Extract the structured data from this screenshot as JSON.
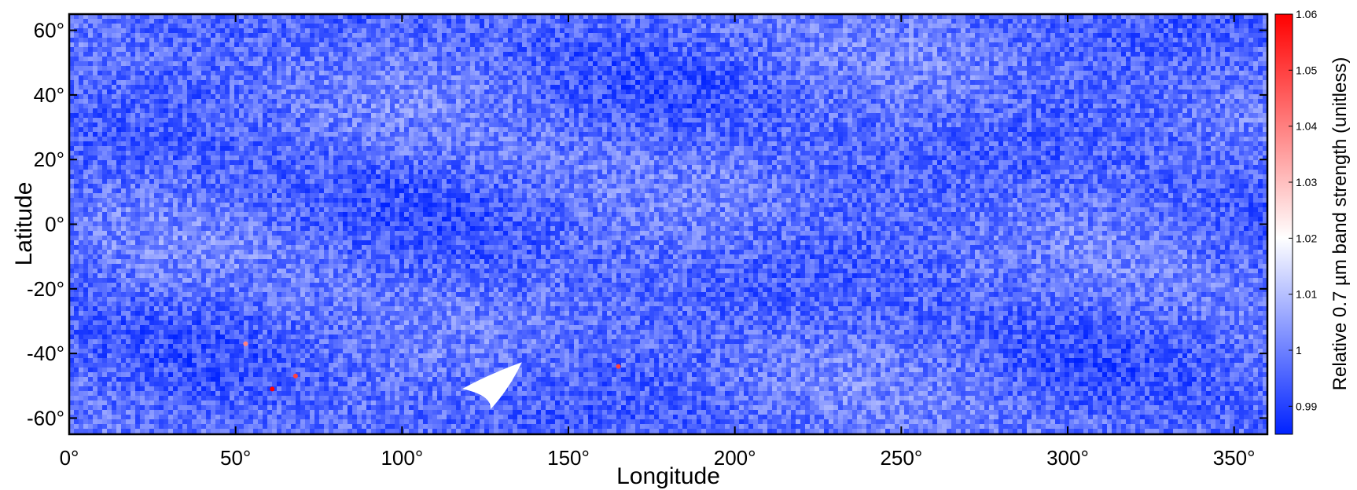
{
  "chart_data": {
    "type": "heatmap",
    "title": "",
    "xlabel": "Longitude",
    "ylabel": "Latitude",
    "xlim": [
      0,
      360
    ],
    "ylim": [
      -65,
      65
    ],
    "x_ticks": [
      0,
      50,
      100,
      150,
      200,
      250,
      300,
      350
    ],
    "x_tick_labels": [
      "0°",
      "50°",
      "100°",
      "150°",
      "200°",
      "250°",
      "300°",
      "350°"
    ],
    "y_ticks": [
      60,
      40,
      20,
      0,
      -20,
      -40,
      -60
    ],
    "y_tick_labels": [
      "60°",
      "40°",
      "20°",
      "0°",
      "-20°",
      "-40°",
      "-60°"
    ],
    "colorbar": {
      "label": "Relative 0.7 µm band strength (unitless)",
      "range": [
        0.985,
        1.06
      ],
      "ticks": [
        1.06,
        1.05,
        1.04,
        1.03,
        1.02,
        1.01,
        1,
        0.99
      ],
      "tick_labels": [
        "1.06",
        "1.05",
        "1.04",
        "1.03",
        "1.02",
        "1.01",
        "1",
        "0.99"
      ],
      "colormap": [
        "#0022ff",
        "#ffffff",
        "#ff0000"
      ],
      "white_value": 1.02,
      "placement": "right"
    },
    "field": {
      "typical_value": 0.997,
      "variation": 0.008
    },
    "features": [
      {
        "kind": "white-patch",
        "lon": 128,
        "lat": -50,
        "value": 1.02
      },
      {
        "kind": "red-spot",
        "lon": 61,
        "lat": -51,
        "value": 1.06
      },
      {
        "kind": "red-spot",
        "lon": 68,
        "lat": -47,
        "value": 1.05
      },
      {
        "kind": "red-spot",
        "lon": 165,
        "lat": -44,
        "value": 1.05
      },
      {
        "kind": "red-spot",
        "lon": 53,
        "lat": -37,
        "value": 1.04
      }
    ],
    "grid": false,
    "frame": true
  }
}
